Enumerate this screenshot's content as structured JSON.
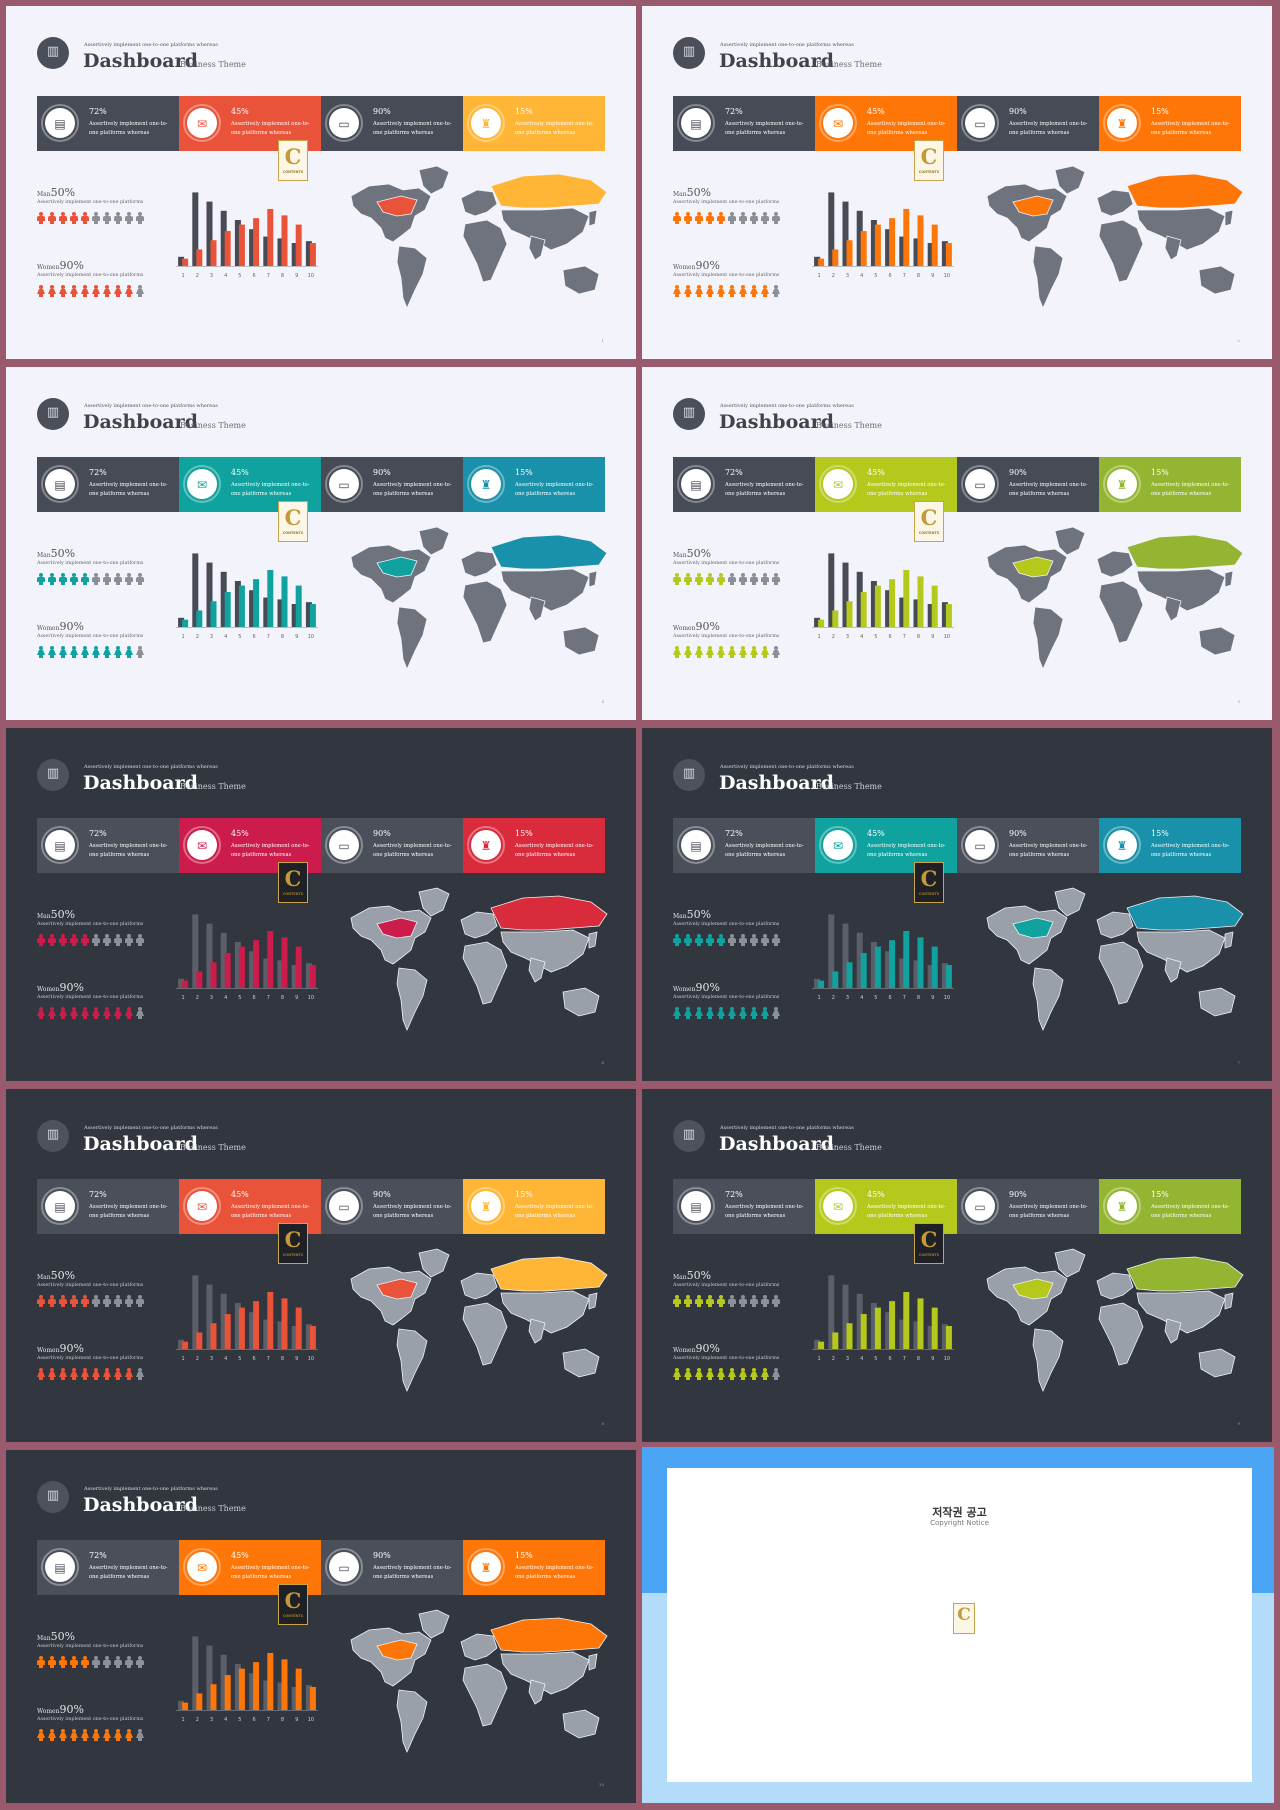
{
  "header": {
    "eyebrow": "Assertively implement one-to-one platforms whereas",
    "title": "Dashboard",
    "subtitle": "Business Theme"
  },
  "kpis": [
    {
      "icon": "presentation-icon",
      "value": "72%",
      "text": "Assertively implement one-to-one platforms whereas"
    },
    {
      "icon": "chat-icon",
      "value": "45%",
      "text": "Assertively implement one-to-one platforms whereas"
    },
    {
      "icon": "folder-icon",
      "value": "90%",
      "text": "Assertively implement one-to-one platforms whereas"
    },
    {
      "icon": "graduation-cap-icon",
      "value": "15%",
      "text": "Assertively implement one-to-one platforms whereas"
    }
  ],
  "people": {
    "men_label": "Man",
    "men_value": "50%",
    "men_sub": "Assertively implement one-to-one platforms",
    "men_active": 5,
    "women_label": "Women",
    "women_value": "90%",
    "women_sub": "Assertively implement one-to-one platforms",
    "women_active": 9,
    "total": 10
  },
  "badge": {
    "letter": "C",
    "text": "CONTENTS"
  },
  "chart_data": {
    "type": "bar",
    "categories": [
      "1",
      "2",
      "3",
      "4",
      "5",
      "6",
      "7",
      "8",
      "9",
      "10"
    ],
    "series": [
      {
        "values": [
          10,
          80,
          70,
          60,
          50,
          40,
          32,
          30,
          25,
          27
        ]
      },
      {
        "values": [
          8,
          18,
          28,
          38,
          45,
          52,
          62,
          55,
          45,
          25
        ]
      }
    ]
  },
  "slides": [
    {
      "theme": "light",
      "accent_a": "#e9533a",
      "accent_b": "#ffb636",
      "page": "1"
    },
    {
      "theme": "light",
      "accent_a": "#ff7608",
      "accent_b": "#ff7608",
      "page": "2"
    },
    {
      "theme": "light",
      "accent_a": "#0fa29e",
      "accent_b": "#1a91aa",
      "page": "4"
    },
    {
      "theme": "light",
      "accent_a": "#b5c91c",
      "accent_b": "#94b532",
      "page": "5"
    },
    {
      "theme": "dark",
      "accent_a": "#cc1c4b",
      "accent_b": "#d92b3c",
      "page": "6"
    },
    {
      "theme": "dark",
      "accent_a": "#0fa29e",
      "accent_b": "#1a91aa",
      "page": "7"
    },
    {
      "theme": "dark",
      "accent_a": "#e9533a",
      "accent_b": "#ffb636",
      "page": "8"
    },
    {
      "theme": "dark",
      "accent_a": "#b5c91c",
      "accent_b": "#94b532",
      "page": "9"
    },
    {
      "theme": "dark",
      "accent_a": "#ff7608",
      "accent_b": "#ff7608",
      "page": "10"
    }
  ],
  "notice": {
    "title": "저작권 공고",
    "subtitle": "Copyright Notice",
    "p1": "",
    "p2": "",
    "p3": "",
    "p4": "",
    "p5": ""
  }
}
